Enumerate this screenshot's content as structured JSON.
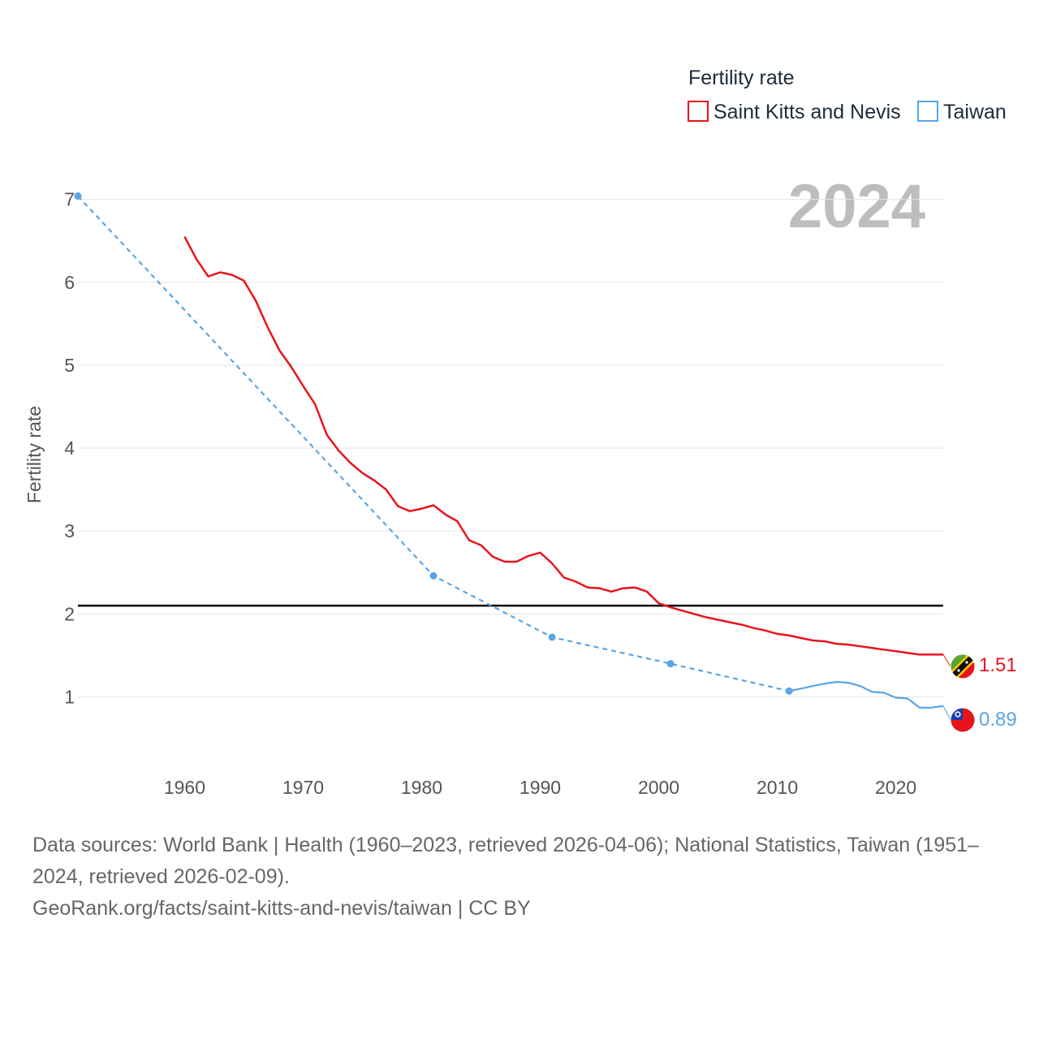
{
  "chart_data": {
    "type": "line",
    "title": "2024",
    "ylabel": "Fertility rate",
    "xlabel": "",
    "xlim": [
      1951,
      2024
    ],
    "ylim": [
      0.3,
      7.3
    ],
    "x_ticks": [
      1960,
      1970,
      1980,
      1990,
      2000,
      2010,
      2020
    ],
    "y_ticks": [
      1,
      2,
      3,
      4,
      5,
      6,
      7
    ],
    "grid": true,
    "reference_line": {
      "value": 2.1,
      "color": "#000000"
    },
    "legend": {
      "title": "Fertility rate",
      "position": "top-right"
    },
    "series": [
      {
        "name": "Saint Kitts and Nevis",
        "color": "#e8141c",
        "style": "solid",
        "end_label": "1.51",
        "flag": "saint-kitts-and-nevis-flag",
        "points": [
          [
            1960,
            6.55
          ],
          [
            1961,
            6.28
          ],
          [
            1962,
            6.07
          ],
          [
            1963,
            6.12
          ],
          [
            1964,
            6.09
          ],
          [
            1965,
            6.02
          ],
          [
            1966,
            5.78
          ],
          [
            1967,
            5.46
          ],
          [
            1968,
            5.18
          ],
          [
            1969,
            4.98
          ],
          [
            1970,
            4.75
          ],
          [
            1971,
            4.53
          ],
          [
            1972,
            4.16
          ],
          [
            1973,
            3.97
          ],
          [
            1974,
            3.82
          ],
          [
            1975,
            3.7
          ],
          [
            1976,
            3.61
          ],
          [
            1977,
            3.5
          ],
          [
            1978,
            3.3
          ],
          [
            1979,
            3.24
          ],
          [
            1980,
            3.27
          ],
          [
            1981,
            3.31
          ],
          [
            1982,
            3.2
          ],
          [
            1983,
            3.12
          ],
          [
            1984,
            2.89
          ],
          [
            1985,
            2.83
          ],
          [
            1986,
            2.69
          ],
          [
            1987,
            2.63
          ],
          [
            1988,
            2.63
          ],
          [
            1989,
            2.7
          ],
          [
            1990,
            2.74
          ],
          [
            1991,
            2.61
          ],
          [
            1992,
            2.44
          ],
          [
            1993,
            2.39
          ],
          [
            1994,
            2.32
          ],
          [
            1995,
            2.31
          ],
          [
            1996,
            2.27
          ],
          [
            1997,
            2.31
          ],
          [
            1998,
            2.32
          ],
          [
            1999,
            2.27
          ],
          [
            2000,
            2.13
          ],
          [
            2001,
            2.08
          ],
          [
            2002,
            2.04
          ],
          [
            2003,
            2.0
          ],
          [
            2004,
            1.96
          ],
          [
            2005,
            1.93
          ],
          [
            2006,
            1.9
          ],
          [
            2007,
            1.87
          ],
          [
            2008,
            1.83
          ],
          [
            2009,
            1.8
          ],
          [
            2010,
            1.76
          ],
          [
            2011,
            1.74
          ],
          [
            2012,
            1.71
          ],
          [
            2013,
            1.68
          ],
          [
            2014,
            1.67
          ],
          [
            2015,
            1.64
          ],
          [
            2016,
            1.63
          ],
          [
            2017,
            1.61
          ],
          [
            2018,
            1.59
          ],
          [
            2019,
            1.57
          ],
          [
            2020,
            1.55
          ],
          [
            2021,
            1.53
          ],
          [
            2022,
            1.51
          ],
          [
            2023,
            1.51
          ],
          [
            2024,
            1.51
          ]
        ]
      },
      {
        "name": "Taiwan",
        "color": "#5aa4e6",
        "style": "dashed-then-solid",
        "end_label": "0.89",
        "flag": "taiwan-flag",
        "sparse_points": [
          [
            1951,
            7.04
          ],
          [
            1981,
            2.46
          ],
          [
            1991,
            1.72
          ],
          [
            2001,
            1.4
          ],
          [
            2011,
            1.07
          ]
        ],
        "points": [
          [
            2011,
            1.07
          ],
          [
            2012,
            1.1
          ],
          [
            2013,
            1.13
          ],
          [
            2014,
            1.16
          ],
          [
            2015,
            1.18
          ],
          [
            2016,
            1.17
          ],
          [
            2017,
            1.13
          ],
          [
            2018,
            1.06
          ],
          [
            2019,
            1.05
          ],
          [
            2020,
            0.99
          ],
          [
            2021,
            0.98
          ],
          [
            2022,
            0.87
          ],
          [
            2023,
            0.87
          ],
          [
            2024,
            0.89
          ]
        ]
      }
    ]
  },
  "footer": {
    "sources": "Data sources: World Bank | Health (1960–2023, retrieved 2026-04-06); National Statistics, Taiwan (1951–2024, retrieved 2026-02-09).",
    "link": "GeoRank.org/facts/saint-kitts-and-nevis/taiwan | CC BY"
  }
}
